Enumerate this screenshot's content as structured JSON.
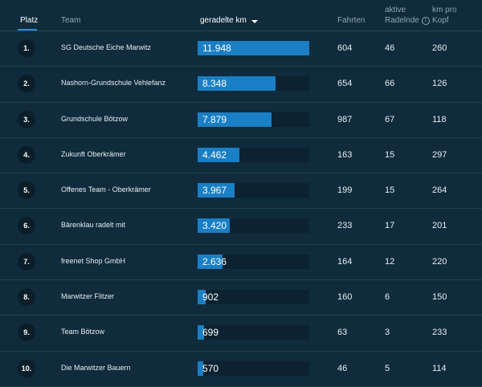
{
  "header": {
    "platz": "Platz",
    "team": "Team",
    "km": "geradelte km",
    "fahrten": "Fahrten",
    "aktive_line1": "aktive",
    "aktive_line2": "Radelnde",
    "kmpro_line1": "km pro",
    "kmpro_line2": "Kopf"
  },
  "colors": {
    "accent": "#1a7fc4",
    "background": "#0f2b3c"
  },
  "rows": [
    {
      "rank": "1.",
      "team": "SG Deutsche Eiche Marwitz",
      "km": "11.948",
      "km_value": 11948,
      "fahrten": "604",
      "aktive": "46",
      "kmpro": "260"
    },
    {
      "rank": "2.",
      "team": "Nashorn-Grundschule Vehlefanz",
      "km": "8.348",
      "km_value": 8348,
      "fahrten": "654",
      "aktive": "66",
      "kmpro": "126"
    },
    {
      "rank": "3.",
      "team": "Grundschule Bötzow",
      "km": "7.879",
      "km_value": 7879,
      "fahrten": "987",
      "aktive": "67",
      "kmpro": "118"
    },
    {
      "rank": "4.",
      "team": "Zukunft Oberkrämer",
      "km": "4.462",
      "km_value": 4462,
      "fahrten": "163",
      "aktive": "15",
      "kmpro": "297"
    },
    {
      "rank": "5.",
      "team": "Offenes Team - Oberkrämer",
      "km": "3.967",
      "km_value": 3967,
      "fahrten": "199",
      "aktive": "15",
      "kmpro": "264"
    },
    {
      "rank": "6.",
      "team": "Bärenklau radelt mit",
      "km": "3.420",
      "km_value": 3420,
      "fahrten": "233",
      "aktive": "17",
      "kmpro": "201"
    },
    {
      "rank": "7.",
      "team": "freenet Shop GmbH",
      "km": "2.636",
      "km_value": 2636,
      "fahrten": "164",
      "aktive": "12",
      "kmpro": "220"
    },
    {
      "rank": "8.",
      "team": "Marwitzer Flitzer",
      "km": "902",
      "km_value": 902,
      "fahrten": "160",
      "aktive": "6",
      "kmpro": "150"
    },
    {
      "rank": "9.",
      "team": "Team Bötzow",
      "km": "699",
      "km_value": 699,
      "fahrten": "63",
      "aktive": "3",
      "kmpro": "233"
    },
    {
      "rank": "10.",
      "team": "Die Marwitzer Bauern",
      "km": "570",
      "km_value": 570,
      "fahrten": "46",
      "aktive": "5",
      "kmpro": "114"
    }
  ]
}
